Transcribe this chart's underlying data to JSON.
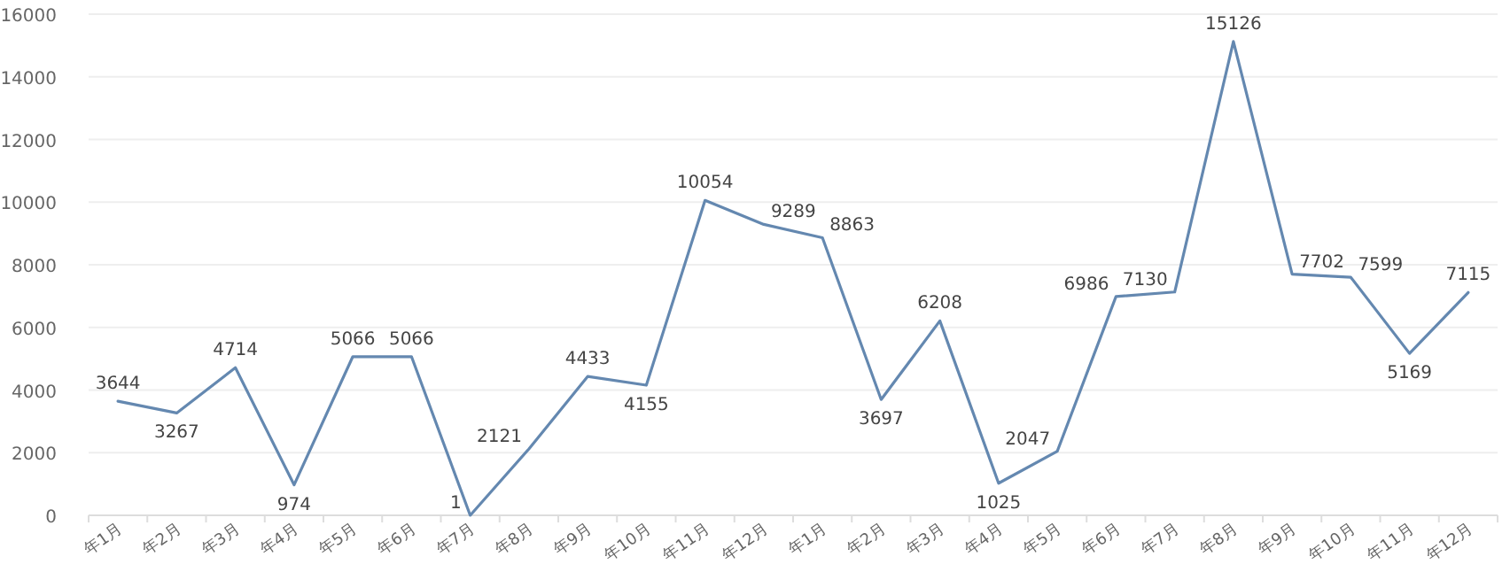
{
  "chart_data": {
    "type": "line",
    "categories": [
      "年1月",
      "年2月",
      "年3月",
      "年4月",
      "年5月",
      "年6月",
      "年7月",
      "年8月",
      "年9月",
      "年10月",
      "年11月",
      "年12月",
      "年1月",
      "年2月",
      "年3月",
      "年4月",
      "年5月",
      "年6月",
      "年7月",
      "年8月",
      "年9月",
      "年10月",
      "年11月",
      "年12月"
    ],
    "series": [
      {
        "color": "#6488b0",
        "values": [
          3644,
          3267,
          4714,
          974,
          5066,
          5066,
          1,
          2121,
          4433,
          4155,
          10054,
          9289,
          8863,
          3697,
          6208,
          1025,
          2047,
          6986,
          7130,
          15126,
          7702,
          7599,
          5169,
          7115
        ]
      }
    ],
    "ylim": [
      0,
      16000
    ],
    "yticks": [
      0,
      2000,
      4000,
      6000,
      8000,
      10000,
      12000,
      14000,
      16000
    ],
    "grid": "y",
    "data_labels": true,
    "marker": "none",
    "line_style": "solid"
  }
}
